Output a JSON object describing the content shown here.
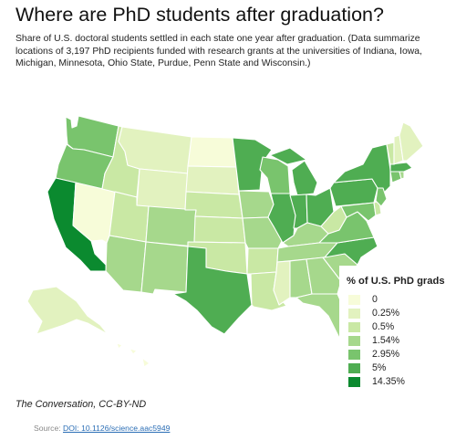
{
  "title": "Where are PhD students after graduation?",
  "description": "Share of U.S. doctoral students settled in each state one year after graduation. (Data summarize locations of 3,197 PhD recipients funded with research grants at the universities of Indiana, Iowa, Michigan, Minnesota, Ohio State, Purdue, Penn State and Wisconsin.)",
  "legend": {
    "title": "% of U.S. PhD grads",
    "items": [
      {
        "label": "0",
        "color": "#f7fcd9"
      },
      {
        "label": "0.25%",
        "color": "#e2f2bf"
      },
      {
        "label": "0.5%",
        "color": "#c9e8a4"
      },
      {
        "label": "1.54%",
        "color": "#a6d88c"
      },
      {
        "label": "2.95%",
        "color": "#79c46d"
      },
      {
        "label": "5%",
        "color": "#4fad52"
      },
      {
        "label": "14.35%",
        "color": "#0b8a2f"
      }
    ]
  },
  "states": [
    {
      "name": "Washington",
      "color": "#79c46d"
    },
    {
      "name": "Oregon",
      "color": "#79c46d"
    },
    {
      "name": "California",
      "color": "#0b8a2f"
    },
    {
      "name": "Nevada",
      "color": "#f7fcd9"
    },
    {
      "name": "Idaho",
      "color": "#c9e8a4"
    },
    {
      "name": "Montana",
      "color": "#e2f2bf"
    },
    {
      "name": "Wyoming",
      "color": "#e2f2bf"
    },
    {
      "name": "Utah",
      "color": "#c9e8a4"
    },
    {
      "name": "Arizona",
      "color": "#a6d88c"
    },
    {
      "name": "Colorado",
      "color": "#a6d88c"
    },
    {
      "name": "New Mexico",
      "color": "#a6d88c"
    },
    {
      "name": "North Dakota",
      "color": "#f7fcd9"
    },
    {
      "name": "South Dakota",
      "color": "#e2f2bf"
    },
    {
      "name": "Nebraska",
      "color": "#c9e8a4"
    },
    {
      "name": "Kansas",
      "color": "#c9e8a4"
    },
    {
      "name": "Oklahoma",
      "color": "#c9e8a4"
    },
    {
      "name": "Texas",
      "color": "#4fad52"
    },
    {
      "name": "Minnesota",
      "color": "#4fad52"
    },
    {
      "name": "Iowa",
      "color": "#a6d88c"
    },
    {
      "name": "Missouri",
      "color": "#a6d88c"
    },
    {
      "name": "Arkansas",
      "color": "#c9e8a4"
    },
    {
      "name": "Louisiana",
      "color": "#c9e8a4"
    },
    {
      "name": "Wisconsin",
      "color": "#79c46d"
    },
    {
      "name": "Illinois",
      "color": "#4fad52"
    },
    {
      "name": "Michigan",
      "color": "#4fad52"
    },
    {
      "name": "Indiana",
      "color": "#4fad52"
    },
    {
      "name": "Ohio",
      "color": "#4fad52"
    },
    {
      "name": "Kentucky",
      "color": "#a6d88c"
    },
    {
      "name": "Tennessee",
      "color": "#a6d88c"
    },
    {
      "name": "Mississippi",
      "color": "#e2f2bf"
    },
    {
      "name": "Alabama",
      "color": "#a6d88c"
    },
    {
      "name": "Georgia",
      "color": "#a6d88c"
    },
    {
      "name": "Florida",
      "color": "#a6d88c"
    },
    {
      "name": "South Carolina",
      "color": "#a6d88c"
    },
    {
      "name": "North Carolina",
      "color": "#4fad52"
    },
    {
      "name": "Virginia",
      "color": "#79c46d"
    },
    {
      "name": "West Virginia",
      "color": "#c9e8a4"
    },
    {
      "name": "Pennsylvania",
      "color": "#4fad52"
    },
    {
      "name": "New York",
      "color": "#4fad52"
    },
    {
      "name": "Maryland",
      "color": "#79c46d"
    },
    {
      "name": "Delaware",
      "color": "#c9e8a4"
    },
    {
      "name": "New Jersey",
      "color": "#79c46d"
    },
    {
      "name": "Connecticut",
      "color": "#79c46d"
    },
    {
      "name": "Rhode Island",
      "color": "#a6d88c"
    },
    {
      "name": "Massachusetts",
      "color": "#4fad52"
    },
    {
      "name": "Vermont",
      "color": "#c9e8a4"
    },
    {
      "name": "New Hampshire",
      "color": "#e2f2bf"
    },
    {
      "name": "Maine",
      "color": "#e2f2bf"
    },
    {
      "name": "Alaska",
      "color": "#e2f2bf"
    },
    {
      "name": "Hawaii",
      "color": "#f7fcd9"
    }
  ],
  "credit": "The Conversation, CC-BY-ND",
  "source": {
    "prefix": "Source: ",
    "link_text": "DOI: 10.1126/science.aac5949"
  }
}
